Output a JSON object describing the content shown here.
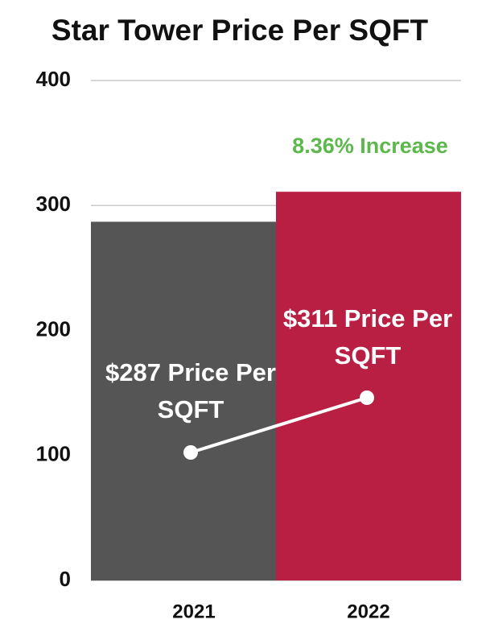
{
  "chart_data": {
    "type": "bar",
    "title": "Star Tower Price Per SQFT",
    "categories": [
      "2021",
      "2022"
    ],
    "values": [
      287,
      311
    ],
    "value_labels": [
      "$287 Price Per SQFT",
      "$311 Price Per SQFT"
    ],
    "colors": [
      "#555555",
      "#b81f43"
    ],
    "annotation": "8.36% Increase",
    "ylim": [
      0,
      400
    ],
    "yticks": [
      0,
      100,
      200,
      300,
      400
    ],
    "grid": true
  }
}
